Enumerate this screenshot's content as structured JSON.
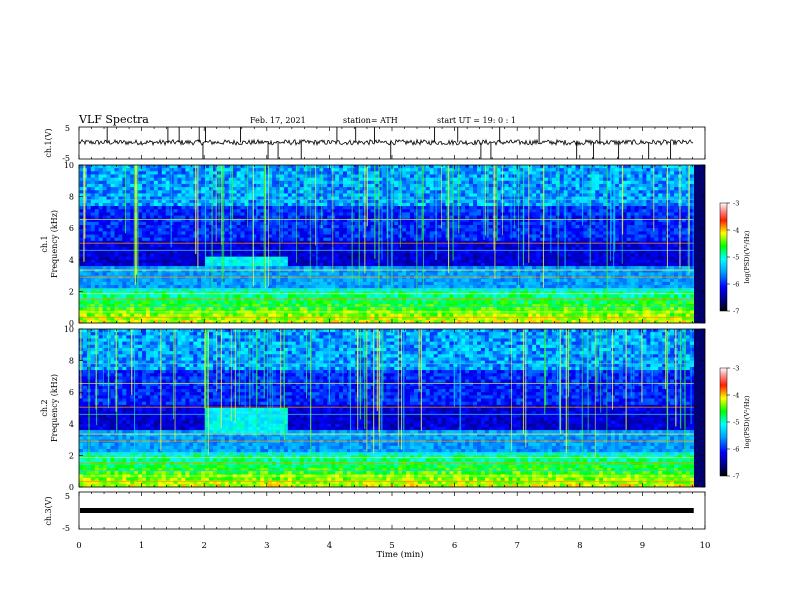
{
  "header": {
    "title": "VLF Spectra",
    "date": "Feb. 17, 2021",
    "station": "station= ATH",
    "start": "start UT = 19: 0 : 1"
  },
  "chart_data": [
    {
      "type": "line",
      "panel": "ch1-waveform",
      "ylabel": "ch.1(V)",
      "yticks": [
        "5",
        "-5"
      ],
      "ylim": [
        -5,
        5
      ],
      "xlim": [
        0,
        10
      ],
      "trace_level_v": 0.2,
      "spike_times_min": [
        0.45,
        1.42,
        1.6,
        1.92,
        1.98,
        2.02,
        2.58,
        3.02,
        3.18,
        3.55,
        4.12,
        4.42,
        4.72,
        4.98,
        5.68,
        6.05,
        6.42,
        6.58,
        6.72,
        7.35,
        7.95,
        8.22,
        8.32,
        8.62,
        9.1,
        9.45
      ]
    },
    {
      "type": "heatmap",
      "panel": "ch1-spectrogram",
      "ylabel": "Frequency (kHz)",
      "channel_label": "ch.1",
      "yticks": [
        "0",
        "2",
        "4",
        "6",
        "8",
        "10"
      ],
      "ylim": [
        0,
        10
      ],
      "xlim": [
        0,
        9.82
      ],
      "colorbar": {
        "label": "log(PSD)(V²/Hz)",
        "ticks": [
          "-3",
          "-4",
          "-5",
          "-6",
          "-7"
        ],
        "range": [
          -7,
          -3
        ]
      },
      "active_window_min": [
        2.02,
        3.32
      ],
      "active_band_khz": [
        3.7,
        4.3
      ]
    },
    {
      "type": "heatmap",
      "panel": "ch2-spectrogram",
      "ylabel": "Frequency (kHz)",
      "channel_label": "ch.2",
      "yticks": [
        "0",
        "2",
        "4",
        "6",
        "8",
        "10"
      ],
      "ylim": [
        0,
        10
      ],
      "xlim": [
        0,
        9.82
      ],
      "colorbar": {
        "label": "log(PSD)(V²/Hz)",
        "ticks": [
          "-3",
          "-4",
          "-5",
          "-6",
          "-7"
        ],
        "range": [
          -7,
          -3
        ]
      },
      "active_window_min": [
        2.02,
        3.32
      ],
      "active_band_khz": [
        3.5,
        4.9
      ]
    },
    {
      "type": "line",
      "panel": "ch3-waveform",
      "ylabel": "ch.3(V)",
      "yticks": [
        "5",
        "-5"
      ],
      "ylim": [
        -5,
        5
      ],
      "xlim": [
        0,
        10
      ],
      "trace_level_v": 0
    }
  ],
  "xaxis": {
    "label": "Time (min)",
    "ticks": [
      "0",
      "1",
      "2",
      "3",
      "4",
      "5",
      "6",
      "7",
      "8",
      "9",
      "10"
    ],
    "range": [
      0,
      10
    ]
  },
  "colors": {
    "scale": [
      "#00006e",
      "#0000ff",
      "#00a0ff",
      "#00ffff",
      "#00ff00",
      "#ffff00",
      "#ff8000",
      "#ff0000",
      "#ffffff"
    ]
  }
}
